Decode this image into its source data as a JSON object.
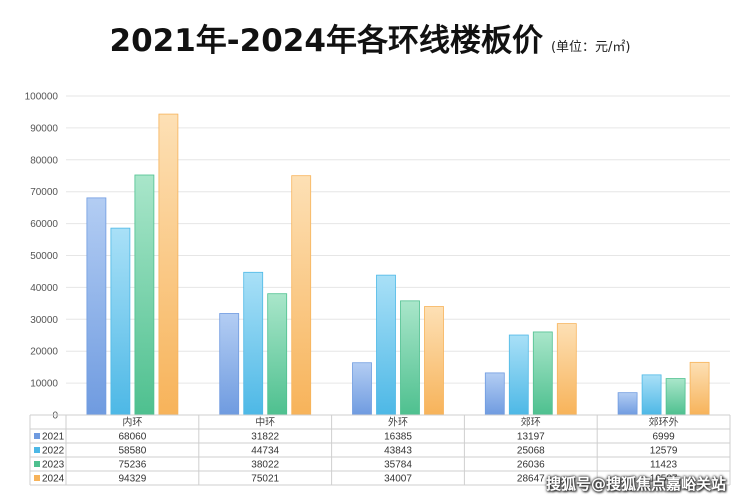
{
  "title": "2021年-2024年各环线楼板价",
  "unit": "(单位：元/㎡)",
  "watermark": "搜狐号@搜狐焦点嘉峪关站",
  "chart_data": {
    "type": "bar",
    "categories": [
      "内环",
      "中环",
      "外环",
      "郊环",
      "郊环外"
    ],
    "series": [
      {
        "name": "2021",
        "values": [
          68060,
          31822,
          16385,
          13197,
          6999
        ],
        "color": "#6f9be0",
        "light": "#b3cdf3"
      },
      {
        "name": "2022",
        "values": [
          58580,
          44734,
          43843,
          25068,
          12579
        ],
        "color": "#4db8e6",
        "light": "#a9e0f7"
      },
      {
        "name": "2023",
        "values": [
          75236,
          38022,
          35784,
          26036,
          11423
        ],
        "color": "#4ec08f",
        "light": "#a9e6ca"
      },
      {
        "name": "2024",
        "values": [
          94329,
          75021,
          34007,
          28647,
          16507
        ],
        "color": "#f7b35a",
        "light": "#fde0b5"
      }
    ],
    "ylim": [
      0,
      100000
    ],
    "yticks": [
      0,
      10000,
      20000,
      30000,
      40000,
      50000,
      60000,
      70000,
      80000,
      90000,
      100000
    ],
    "grid": true,
    "legend": "data-table-left",
    "xlabel": "",
    "ylabel": ""
  }
}
